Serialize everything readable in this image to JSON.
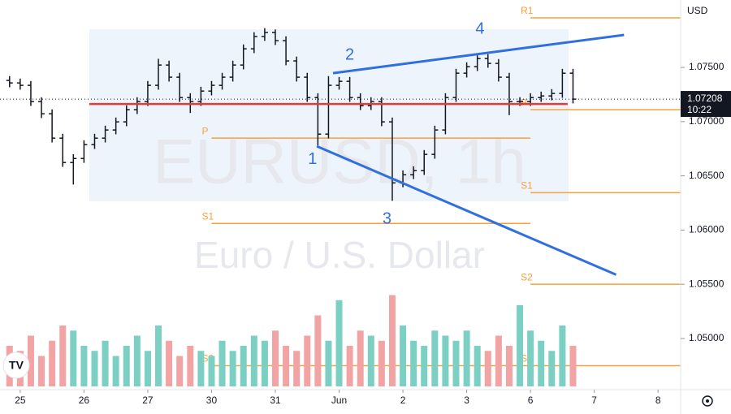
{
  "chart_data": {
    "type": "ohlc",
    "title": "EURUSD, 1h",
    "subtitle": "Euro / U.S. Dollar",
    "currency": "USD",
    "x": [
      -4,
      0,
      4,
      8,
      12,
      16,
      20,
      24,
      28,
      32,
      36,
      40,
      44,
      48,
      52,
      56,
      60,
      64,
      68,
      72,
      76,
      80,
      84,
      88,
      92,
      96,
      100,
      104,
      108,
      112,
      116,
      120,
      124,
      128,
      132,
      136,
      140,
      144,
      148,
      152,
      156,
      160,
      164,
      168,
      172,
      176,
      180,
      184,
      188,
      192,
      196,
      200,
      204,
      208
    ],
    "open": [
      1.0738,
      1.07357,
      1.07335,
      1.07185,
      1.07073,
      1.06848,
      1.06623,
      1.0666,
      1.06788,
      1.06848,
      1.06923,
      1.06998,
      1.0711,
      1.07185,
      1.07335,
      1.07522,
      1.0741,
      1.07222,
      1.07185,
      1.07282,
      1.07335,
      1.0741,
      1.07522,
      1.07672,
      1.07785,
      1.07822,
      1.07747,
      1.0756,
      1.0741,
      1.07222,
      1.06885,
      1.07335,
      1.07372,
      1.07222,
      1.07147,
      1.07185,
      1.06998,
      1.06435,
      1.0651,
      1.06548,
      1.06698,
      1.06923,
      1.07222,
      1.07447,
      1.07507,
      1.07582,
      1.07537,
      1.0741,
      1.07185,
      1.07185,
      1.07222,
      1.07237,
      1.0726,
      1.07447
    ],
    "high": [
      1.0742,
      1.07397,
      1.07375,
      1.07225,
      1.07113,
      1.06888,
      1.067,
      1.06828,
      1.06888,
      1.06963,
      1.07038,
      1.0715,
      1.07225,
      1.07375,
      1.0758,
      1.07562,
      1.0745,
      1.07262,
      1.07322,
      1.07375,
      1.0745,
      1.07562,
      1.07712,
      1.07825,
      1.07862,
      1.0785,
      1.07787,
      1.076,
      1.0745,
      1.07262,
      1.0742,
      1.07412,
      1.07412,
      1.07262,
      1.07225,
      1.07225,
      1.07038,
      1.0655,
      1.06588,
      1.06738,
      1.06963,
      1.07262,
      1.07487,
      1.07547,
      1.07622,
      1.07622,
      1.07577,
      1.0745,
      1.07225,
      1.07262,
      1.07277,
      1.073,
      1.07487,
      1.07487
    ],
    "low": [
      1.07317,
      1.07295,
      1.07145,
      1.07033,
      1.06808,
      1.06583,
      1.0642,
      1.0662,
      1.06748,
      1.06808,
      1.06883,
      1.06958,
      1.0707,
      1.07145,
      1.07295,
      1.0737,
      1.07182,
      1.0708,
      1.07145,
      1.07242,
      1.07295,
      1.0737,
      1.07482,
      1.07632,
      1.07745,
      1.07707,
      1.0752,
      1.0737,
      1.07182,
      1.0678,
      1.06845,
      1.07295,
      1.07182,
      1.07107,
      1.07107,
      1.06958,
      1.0627,
      1.06395,
      1.0647,
      1.06508,
      1.06658,
      1.06883,
      1.07182,
      1.07407,
      1.07467,
      1.07497,
      1.0737,
      1.0706,
      1.07145,
      1.07145,
      1.07182,
      1.07197,
      1.0722,
      1.07168
    ],
    "close": [
      1.07357,
      1.07335,
      1.07185,
      1.07073,
      1.06848,
      1.06623,
      1.0666,
      1.06788,
      1.06848,
      1.06923,
      1.06998,
      1.0711,
      1.07185,
      1.07335,
      1.07522,
      1.0741,
      1.07222,
      1.07185,
      1.07282,
      1.07335,
      1.0741,
      1.07522,
      1.07672,
      1.07785,
      1.07822,
      1.07747,
      1.0756,
      1.0741,
      1.07222,
      1.06885,
      1.07335,
      1.07372,
      1.07222,
      1.07147,
      1.07185,
      1.06998,
      1.06435,
      1.0651,
      1.06548,
      1.06698,
      1.06923,
      1.07222,
      1.07447,
      1.07507,
      1.07582,
      1.07537,
      1.0741,
      1.07185,
      1.07185,
      1.07222,
      1.07237,
      1.0726,
      1.07447,
      1.07208
    ],
    "volume": [
      40,
      35,
      50,
      30,
      45,
      60,
      55,
      40,
      35,
      45,
      30,
      40,
      50,
      35,
      60,
      45,
      30,
      40,
      35,
      30,
      45,
      35,
      40,
      50,
      45,
      55,
      40,
      35,
      50,
      70,
      45,
      85,
      40,
      55,
      50,
      45,
      90,
      60,
      45,
      40,
      55,
      50,
      45,
      55,
      40,
      35,
      50,
      40,
      80,
      55,
      45,
      35,
      60,
      40
    ],
    "volume_ylim": [
      0,
      100
    ],
    "bar_color": "#131722",
    "up_color": "#7ccfc3",
    "down_color": "#f2a3a3",
    "xlim": [
      -7.6,
      248.5
    ],
    "xticks": [
      {
        "value": 0,
        "label": "25"
      },
      {
        "value": 24,
        "label": "26"
      },
      {
        "value": 48,
        "label": "27"
      },
      {
        "value": 72,
        "label": "30"
      },
      {
        "value": 96,
        "label": "31"
      },
      {
        "value": 120,
        "label": "Jun"
      },
      {
        "value": 144,
        "label": "2"
      },
      {
        "value": 168,
        "label": "3"
      },
      {
        "value": 192,
        "label": "6"
      },
      {
        "value": 216,
        "label": "7"
      },
      {
        "value": 240,
        "label": "8"
      }
    ],
    "ylim": [
      1.04528,
      1.08122
    ],
    "yticks": [
      {
        "value": 1.05,
        "label": "1.05000"
      },
      {
        "value": 1.055,
        "label": "1.05500"
      },
      {
        "value": 1.06,
        "label": "1.06000"
      },
      {
        "value": 1.065,
        "label": "1.06500"
      },
      {
        "value": 1.07,
        "label": "1.07000"
      },
      {
        "value": 1.075,
        "label": "1.07500"
      }
    ],
    "last_price": 1.07208,
    "countdown": "10:22",
    "pivot_color": "#f7a13a",
    "pivots": [
      {
        "name": "R1",
        "value": 1.07957,
        "x0": 192,
        "x1": 248.5
      },
      {
        "name": "P",
        "value": 1.0711,
        "x0": 192,
        "x1": 248.5
      },
      {
        "name": "S1",
        "value": 1.06345,
        "x0": 192,
        "x1": 248.5
      },
      {
        "name": "S2",
        "value": 1.055,
        "x0": 192,
        "x1": 248.5
      },
      {
        "name": "S3",
        "value": 1.04749,
        "x0": 192,
        "x1": 248.5
      },
      {
        "name": "P",
        "value": 1.06848,
        "x0": 72,
        "x1": 192
      },
      {
        "name": "S1",
        "value": 1.06061,
        "x0": 72,
        "x1": 192
      },
      {
        "name": "S2",
        "value": 1.04749,
        "x0": 72,
        "x1": 192
      }
    ],
    "level_color": "#e53935",
    "level": {
      "value": 1.07163,
      "x0": 26,
      "x1": 206
    },
    "trend_color": "#2f6fe0",
    "trendlines": [
      {
        "x": [
          117.7,
          227.2
        ],
        "y": [
          1.07447,
          1.078
        ]
      },
      {
        "x": [
          111.6,
          224.2
        ],
        "y": [
          1.06773,
          1.05588
        ]
      }
    ],
    "waves": [
      {
        "label": "1",
        "x": 110,
        "y": 1.0665
      },
      {
        "label": "2",
        "x": 124,
        "y": 1.0761
      },
      {
        "label": "3",
        "x": 138,
        "y": 1.061
      },
      {
        "label": "4",
        "x": 173,
        "y": 1.0785
      }
    ]
  }
}
